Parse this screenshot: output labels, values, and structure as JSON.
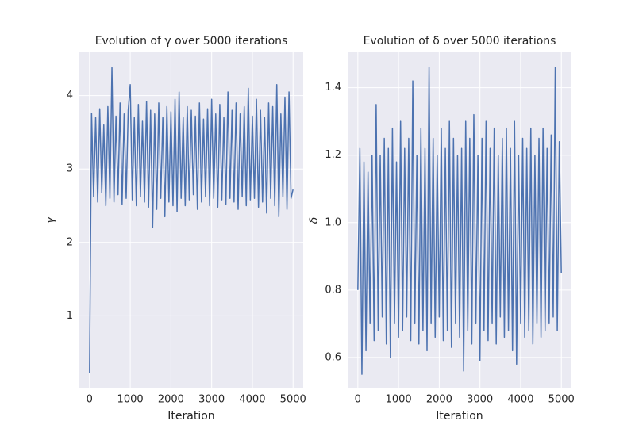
{
  "chart_data": [
    {
      "type": "line",
      "title": "Evolution of γ over 5000 iterations",
      "x_label": "Iteration",
      "y_label": "γ",
      "grid": true,
      "xlim": [
        -250,
        5249
      ],
      "ylim": [
        0.01,
        4.59
      ],
      "xticks": [
        0,
        1000,
        2000,
        3000,
        4000,
        5000
      ],
      "yticks": [
        1,
        2,
        3,
        4
      ],
      "x": [
        0,
        50,
        100,
        150,
        200,
        250,
        300,
        350,
        400,
        450,
        500,
        550,
        600,
        650,
        700,
        750,
        800,
        850,
        900,
        950,
        1000,
        1050,
        1100,
        1150,
        1200,
        1250,
        1300,
        1350,
        1400,
        1450,
        1500,
        1550,
        1600,
        1650,
        1700,
        1750,
        1800,
        1850,
        1900,
        1950,
        2000,
        2050,
        2100,
        2150,
        2200,
        2250,
        2300,
        2350,
        2400,
        2450,
        2500,
        2550,
        2600,
        2650,
        2700,
        2750,
        2800,
        2850,
        2900,
        2950,
        3000,
        3050,
        3100,
        3150,
        3200,
        3250,
        3300,
        3350,
        3400,
        3450,
        3500,
        3550,
        3600,
        3650,
        3700,
        3750,
        3800,
        3850,
        3900,
        3950,
        4000,
        4050,
        4100,
        4150,
        4200,
        4250,
        4300,
        4350,
        4400,
        4450,
        4500,
        4550,
        4600,
        4650,
        4700,
        4750,
        4800,
        4850,
        4900,
        4950,
        4999
      ],
      "series": [
        {
          "name": "γ",
          "color": "#4c72b0",
          "values": [
            0.22,
            3.76,
            2.62,
            3.7,
            2.55,
            3.82,
            2.68,
            3.6,
            2.5,
            3.85,
            2.6,
            4.38,
            2.55,
            3.72,
            2.65,
            3.9,
            2.52,
            3.75,
            2.6,
            3.8,
            4.15,
            2.58,
            3.7,
            2.5,
            3.88,
            2.62,
            3.65,
            2.55,
            3.92,
            2.48,
            3.8,
            2.2,
            3.75,
            2.45,
            3.9,
            2.6,
            3.7,
            2.35,
            3.85,
            2.55,
            3.78,
            2.5,
            3.95,
            2.42,
            4.05,
            2.6,
            3.7,
            2.5,
            3.85,
            2.58,
            3.8,
            2.65,
            3.72,
            2.45,
            3.9,
            2.55,
            3.68,
            2.62,
            3.82,
            2.5,
            3.95,
            2.6,
            3.75,
            2.48,
            3.88,
            2.58,
            3.7,
            2.52,
            4.05,
            2.6,
            3.8,
            2.55,
            3.9,
            2.45,
            3.75,
            2.62,
            3.85,
            2.5,
            4.1,
            2.58,
            3.72,
            2.6,
            3.95,
            2.48,
            3.8,
            2.55,
            3.7,
            2.4,
            3.9,
            2.6,
            3.85,
            2.5,
            4.15,
            2.35,
            3.75,
            2.62,
            3.98,
            2.45,
            4.05,
            2.6,
            2.72
          ]
        }
      ]
    },
    {
      "type": "line",
      "title": "Evolution of δ over 5000 iterations",
      "x_label": "Iteration",
      "y_label": "δ",
      "grid": true,
      "xlim": [
        -250,
        5249
      ],
      "ylim": [
        0.508,
        1.505
      ],
      "xticks": [
        0,
        1000,
        2000,
        3000,
        4000,
        5000
      ],
      "yticks": [
        0.6,
        0.8,
        {
          "value": 1,
          "label": "1.0"
        },
        1.2,
        1.4
      ],
      "x": [
        0,
        50,
        100,
        150,
        200,
        250,
        300,
        350,
        400,
        450,
        500,
        550,
        600,
        650,
        700,
        750,
        800,
        850,
        900,
        950,
        1000,
        1050,
        1100,
        1150,
        1200,
        1250,
        1300,
        1350,
        1400,
        1450,
        1500,
        1550,
        1600,
        1650,
        1700,
        1750,
        1800,
        1850,
        1900,
        1950,
        2000,
        2050,
        2100,
        2150,
        2200,
        2250,
        2300,
        2350,
        2400,
        2450,
        2500,
        2550,
        2600,
        2650,
        2700,
        2750,
        2800,
        2850,
        2900,
        2950,
        3000,
        3050,
        3100,
        3150,
        3200,
        3250,
        3300,
        3350,
        3400,
        3450,
        3500,
        3550,
        3600,
        3650,
        3700,
        3750,
        3800,
        3850,
        3900,
        3950,
        4000,
        4050,
        4100,
        4150,
        4200,
        4250,
        4300,
        4350,
        4400,
        4450,
        4500,
        4550,
        4600,
        4650,
        4700,
        4750,
        4800,
        4850,
        4900,
        4950,
        4999
      ],
      "series": [
        {
          "name": "δ",
          "color": "#4c72b0",
          "values": [
            0.8,
            1.22,
            0.55,
            1.18,
            0.62,
            1.15,
            0.7,
            1.2,
            0.65,
            1.35,
            0.68,
            1.2,
            0.72,
            1.25,
            0.64,
            1.22,
            0.6,
            1.28,
            0.7,
            1.18,
            0.66,
            1.3,
            0.68,
            1.22,
            0.72,
            1.25,
            0.65,
            1.42,
            0.7,
            1.2,
            0.64,
            1.28,
            0.68,
            1.22,
            0.62,
            1.46,
            0.7,
            1.25,
            0.66,
            1.2,
            0.72,
            1.28,
            0.65,
            1.22,
            0.68,
            1.3,
            0.63,
            1.25,
            0.7,
            1.2,
            0.66,
            1.22,
            0.56,
            1.3,
            0.68,
            1.25,
            0.64,
            1.32,
            0.7,
            1.2,
            0.59,
            1.25,
            0.68,
            1.3,
            0.65,
            1.22,
            0.7,
            1.28,
            0.64,
            1.2,
            0.72,
            1.25,
            0.66,
            1.28,
            0.68,
            1.22,
            0.62,
            1.3,
            0.58,
            1.2,
            0.7,
            1.25,
            0.66,
            1.22,
            0.68,
            1.28,
            0.64,
            1.2,
            0.7,
            1.25,
            0.66,
            1.28,
            0.68,
            1.22,
            0.7,
            1.26,
            0.72,
            1.46,
            0.68,
            1.24,
            0.85
          ]
        }
      ]
    }
  ]
}
